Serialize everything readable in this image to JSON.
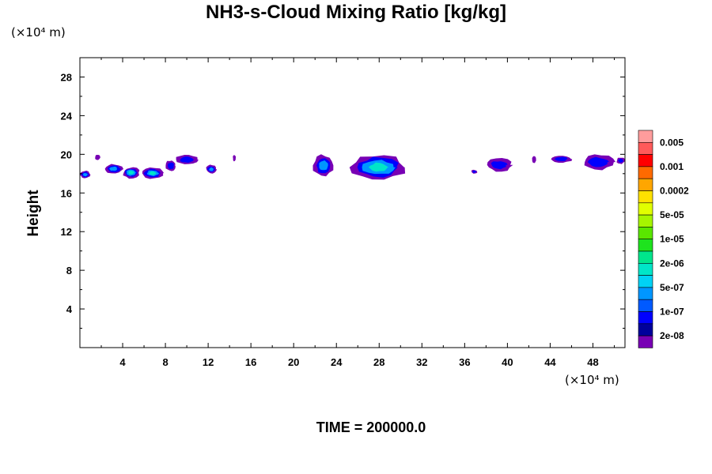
{
  "chart_data": {
    "type": "heatmap",
    "title": "NH3-s-Cloud Mixing Ratio [kg/kg]",
    "ylabel": "Height",
    "x_unit": "(×10⁴ m)",
    "y_unit": "(×10⁴ m)",
    "footer": "TIME = 200000.0",
    "xlim": [
      0,
      51
    ],
    "ylim": [
      0,
      30
    ],
    "x_ticks": [
      "4",
      "8",
      "12",
      "16",
      "20",
      "24",
      "28",
      "32",
      "36",
      "40",
      "44",
      "48"
    ],
    "x_tick_values": [
      4,
      8,
      12,
      16,
      20,
      24,
      28,
      32,
      36,
      40,
      44,
      48
    ],
    "y_ticks": [
      "4",
      "8",
      "12",
      "16",
      "20",
      "24",
      "28"
    ],
    "y_tick_values": [
      4,
      8,
      12,
      16,
      20,
      24,
      28
    ],
    "colorbar": {
      "labels": [
        "0.005",
        "0.001",
        "0.0002",
        "5e-05",
        "1e-05",
        "2e-06",
        "5e-07",
        "1e-07",
        "2e-08"
      ],
      "colors": [
        "#ff9c9c",
        "#ff5a5a",
        "#ff0000",
        "#ff6a00",
        "#ffa600",
        "#ffe100",
        "#e1ff00",
        "#a6f500",
        "#5ae600",
        "#1ee31e",
        "#00e68c",
        "#00e6c8",
        "#00d2f5",
        "#0096ff",
        "#005aff",
        "#0000ff",
        "#00009c",
        "#7800b4"
      ]
    },
    "cloud_patches": [
      {
        "x": [
          0,
          1
        ],
        "y": [
          17.5,
          18.3
        ],
        "level": "5e-07"
      },
      {
        "x": [
          1.4,
          1.9
        ],
        "y": [
          19.4,
          20
        ],
        "level": "2e-08"
      },
      {
        "x": [
          2.3,
          4
        ],
        "y": [
          18,
          19
        ],
        "level": "5e-07"
      },
      {
        "x": [
          4,
          5.6
        ],
        "y": [
          17.5,
          18.7
        ],
        "level": "2e-06"
      },
      {
        "x": [
          5.8,
          7.8
        ],
        "y": [
          17.5,
          18.6
        ],
        "level": "2e-06"
      },
      {
        "x": [
          8,
          9
        ],
        "y": [
          18.2,
          19.4
        ],
        "level": "1e-07"
      },
      {
        "x": [
          9,
          11
        ],
        "y": [
          18.9,
          20
        ],
        "level": "1e-07"
      },
      {
        "x": [
          11.8,
          12.8
        ],
        "y": [
          18,
          18.9
        ],
        "level": "5e-07"
      },
      {
        "x": [
          14.3,
          14.6
        ],
        "y": [
          19.3,
          19.9
        ],
        "level": "2e-08"
      },
      {
        "x": [
          21.8,
          23.8
        ],
        "y": [
          17.7,
          20
        ],
        "level": "5e-07"
      },
      {
        "x": [
          25.3,
          30.5
        ],
        "y": [
          17.3,
          20
        ],
        "level": "2e-06"
      },
      {
        "x": [
          36.6,
          37.2
        ],
        "y": [
          18,
          18.4
        ],
        "level": "1e-07"
      },
      {
        "x": [
          38,
          40.4
        ],
        "y": [
          18.2,
          19.6
        ],
        "level": "1e-07"
      },
      {
        "x": [
          42.3,
          42.7
        ],
        "y": [
          19.1,
          19.8
        ],
        "level": "2e-08"
      },
      {
        "x": [
          44,
          46
        ],
        "y": [
          19.1,
          19.9
        ],
        "level": "1e-07"
      },
      {
        "x": [
          47,
          50
        ],
        "y": [
          18.4,
          20
        ],
        "level": "1e-07"
      },
      {
        "x": [
          50.2,
          51
        ],
        "y": [
          19,
          19.7
        ],
        "level": "1e-07"
      }
    ]
  }
}
